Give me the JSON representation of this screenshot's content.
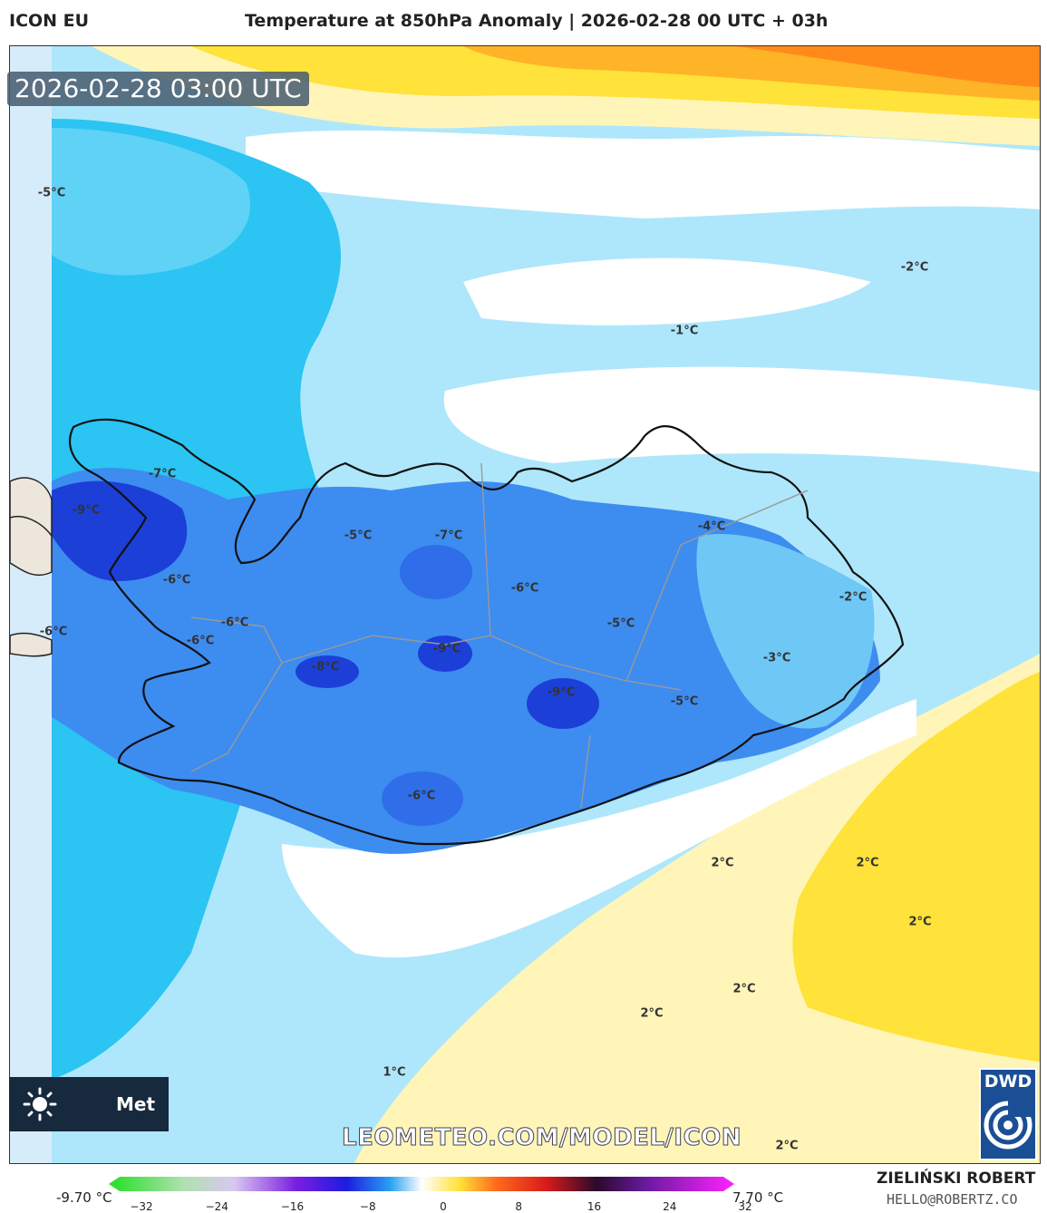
{
  "header": {
    "model": "ICON EU",
    "title": "Temperature at 850hPa Anomaly | 2026-02-28 00 UTC + 03h"
  },
  "timestamp": "2026-02-28 03:00 UTC",
  "watermark": "LEOMETEO.COM/MODEL/ICON",
  "logo": {
    "text": "Met",
    "icon": "sun-icon"
  },
  "dwd_logo": {
    "label": "DWD",
    "icon": "spiral-icon"
  },
  "author": {
    "name": "ZIELIŃSKI ROBERT",
    "email": "HELLO@ROBERTZ.CO"
  },
  "colorbar": {
    "min_label": "-9.70 °C",
    "max_label": "7.70 °C",
    "ticks": [
      "−32",
      "−24",
      "−16",
      "−8",
      "0",
      "8",
      "16",
      "24",
      "32"
    ]
  },
  "labels": [
    {
      "text": "-5°C"
    },
    {
      "text": "-2°C"
    },
    {
      "text": "-1°C"
    },
    {
      "text": "-7°C"
    },
    {
      "text": "-9°C"
    },
    {
      "text": "-5°C"
    },
    {
      "text": "-7°C"
    },
    {
      "text": "-4°C"
    },
    {
      "text": "-6°C"
    },
    {
      "text": "-6°C"
    },
    {
      "text": "-2°C"
    },
    {
      "text": "-6°C"
    },
    {
      "text": "-6°C"
    },
    {
      "text": "-5°C"
    },
    {
      "text": "-6°C"
    },
    {
      "text": "-9°C"
    },
    {
      "text": "-3°C"
    },
    {
      "text": "-8°C"
    },
    {
      "text": "-9°C"
    },
    {
      "text": "-5°C"
    },
    {
      "text": "-6°C"
    },
    {
      "text": "2°C"
    },
    {
      "text": "2°C"
    },
    {
      "text": "2°C"
    },
    {
      "text": "2°C"
    },
    {
      "text": "2°C"
    },
    {
      "text": "1°C"
    },
    {
      "text": "2°C"
    }
  ],
  "colors": {
    "cold_deep": "#1c3fd8",
    "cold_mid": "#3d8cf0",
    "cold_light": "#2bc4f3",
    "cold_pale": "#aee7fb",
    "neutral": "#ffffff",
    "warm_pale": "#fff5b8",
    "warm_yellow": "#ffe23a",
    "warm_orange": "#ff8a1a"
  }
}
